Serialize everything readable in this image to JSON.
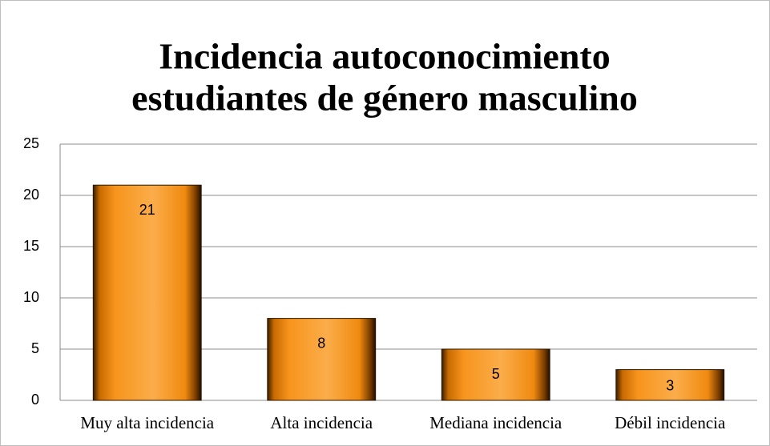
{
  "chart_data": {
    "type": "bar",
    "title": [
      "Incidencia autoconocimiento",
      "estudiantes de género masculino"
    ],
    "categories": [
      "Muy alta incidencia",
      "Alta incidencia",
      "Mediana incidencia",
      "Débil incidencia"
    ],
    "values": [
      21,
      8,
      5,
      3
    ],
    "color": "#f7941d",
    "ylim": [
      0,
      25
    ],
    "yticks": [
      0,
      5,
      10,
      15,
      20,
      25
    ],
    "grid": true
  }
}
